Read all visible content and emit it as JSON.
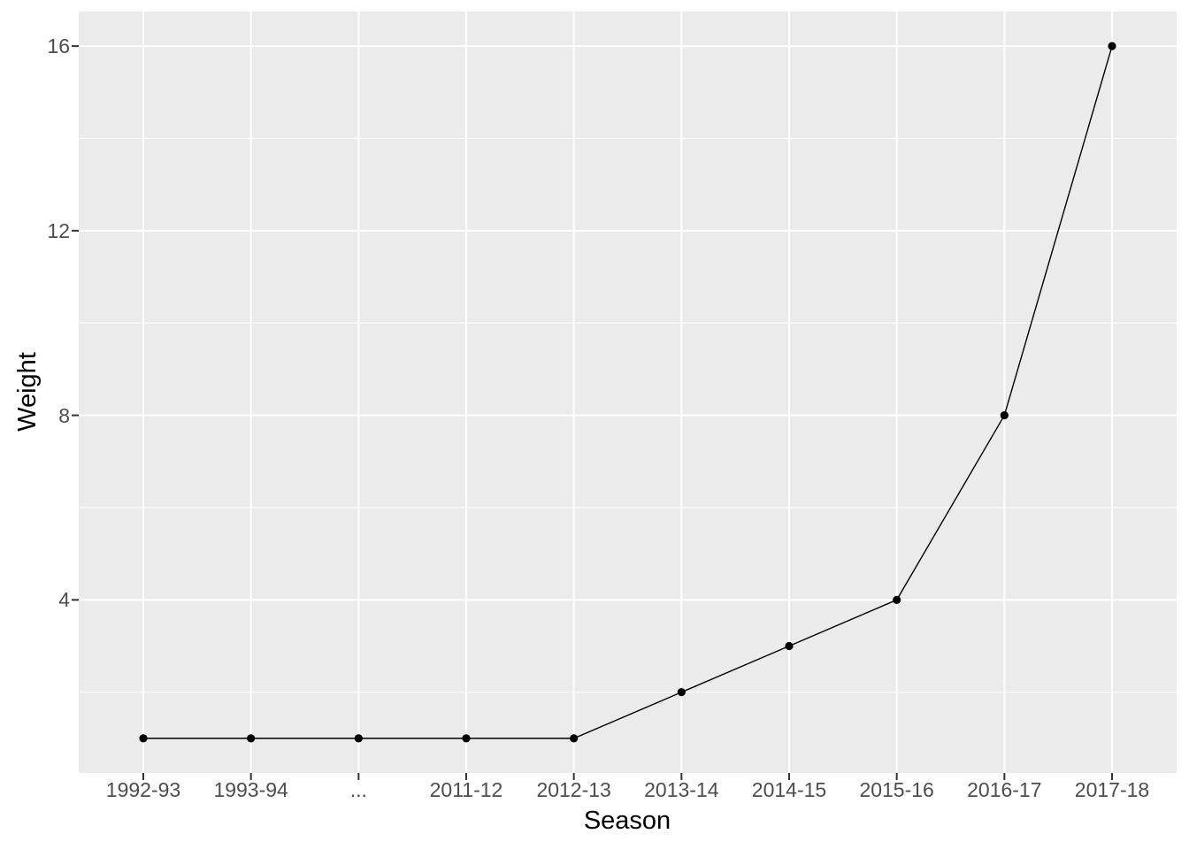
{
  "chart_data": {
    "type": "line",
    "categories": [
      "1992-93",
      "1993-94",
      "...",
      "2011-12",
      "2012-13",
      "2013-14",
      "2014-15",
      "2015-16",
      "2016-17",
      "2017-18"
    ],
    "values": [
      1,
      1,
      1,
      1,
      1,
      2,
      3,
      4,
      8,
      16
    ],
    "title": "",
    "xlabel": "Season",
    "ylabel": "Weight",
    "ylim": [
      0.25,
      16.75
    ],
    "y_major_ticks": [
      4,
      8,
      12,
      16
    ],
    "y_minor_gridlines": [
      2,
      6,
      10,
      14
    ],
    "grid": true,
    "legend": "none",
    "style": {
      "panel_background": "#ebebeb",
      "figure_background": "#ffffff",
      "gridline_color": "#ffffff",
      "line_color": "#000000",
      "point_color": "#000000",
      "tick_label_color": "#4d4d4d",
      "axis_title_color": "#000000",
      "tick_mark_color": "#333333"
    }
  }
}
